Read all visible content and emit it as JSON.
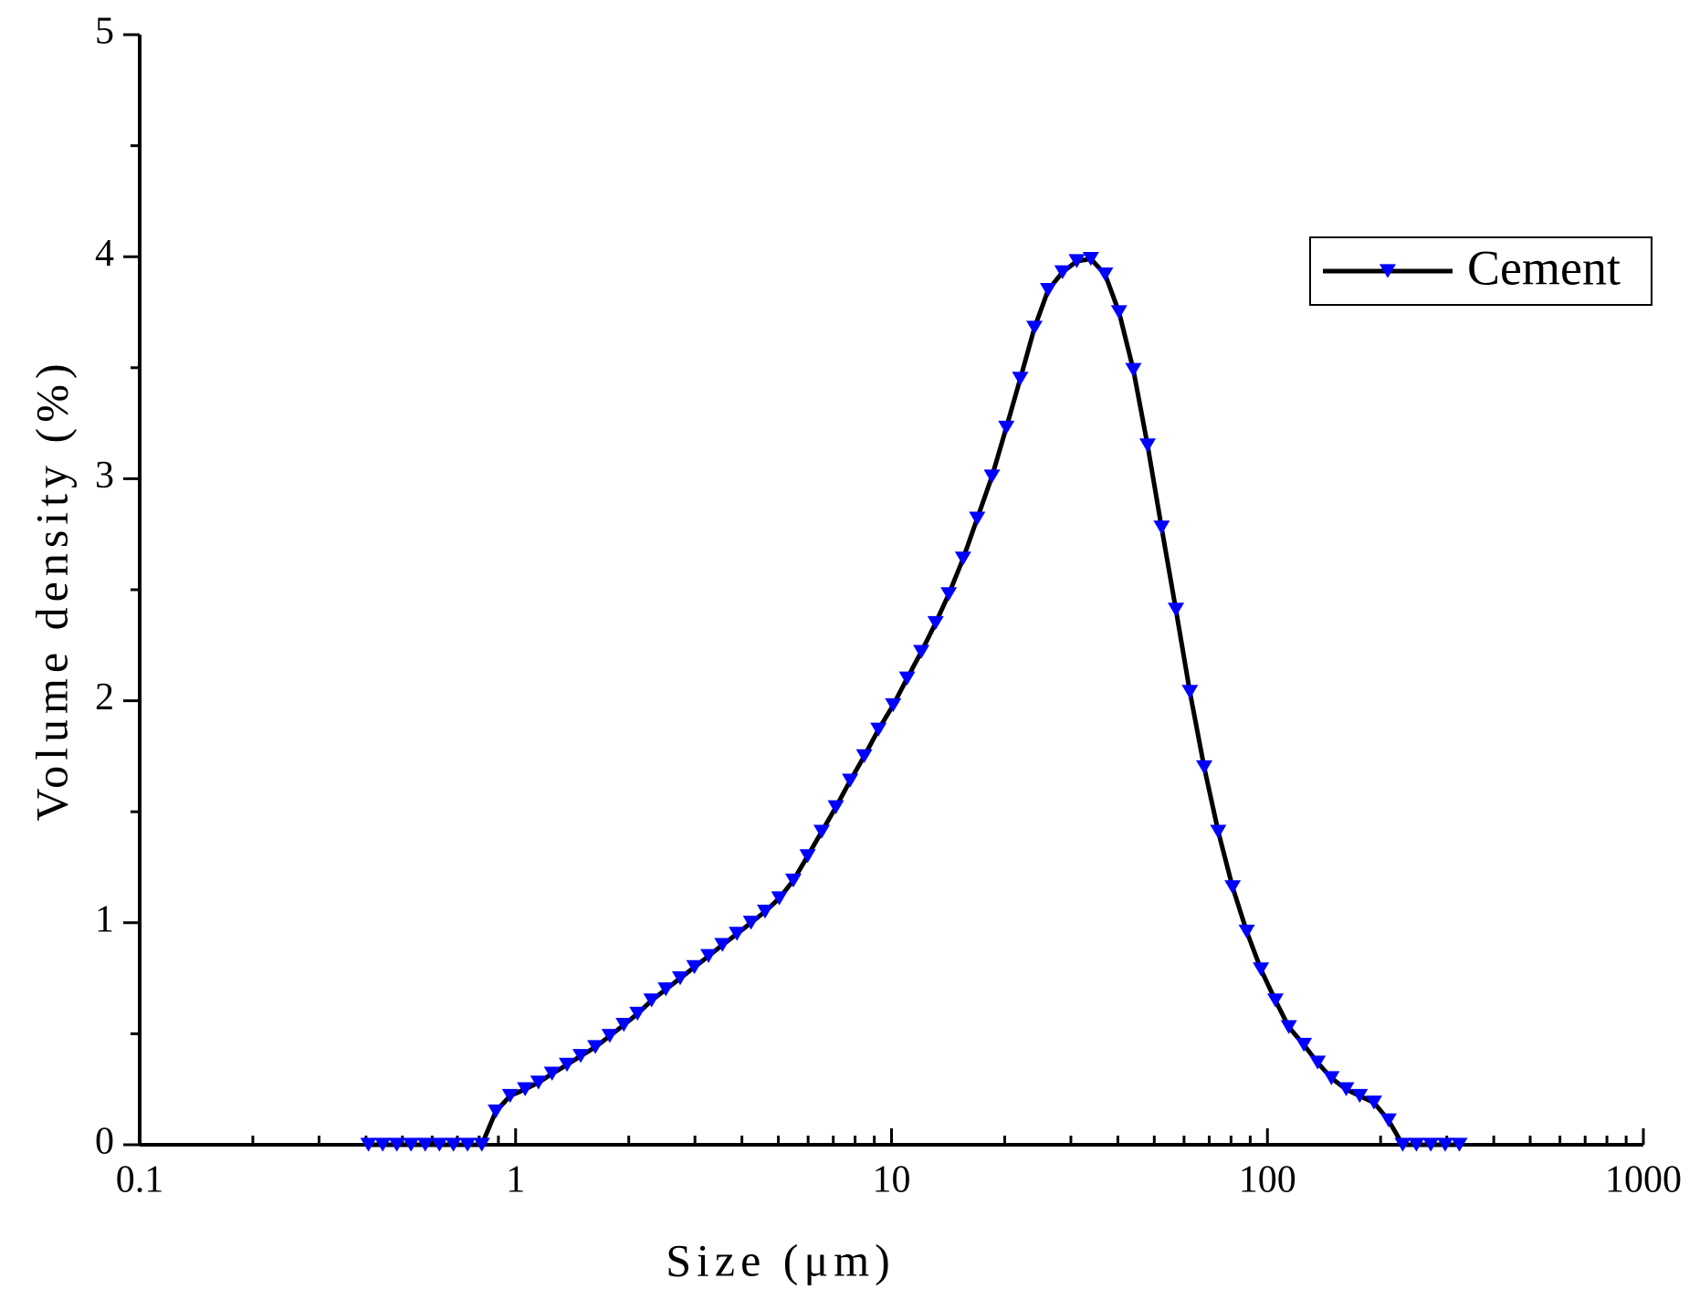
{
  "chart_data": {
    "type": "line",
    "xlabel": "Size (μm)",
    "ylabel": "Volume density (%)",
    "xscale": "log",
    "xlim": [
      0.1,
      1000
    ],
    "ylim": [
      0,
      5
    ],
    "xticks": [
      0.1,
      1,
      10,
      100,
      1000
    ],
    "xminorticks": [
      0.2,
      0.3,
      0.4,
      0.5,
      0.6,
      0.7,
      0.8,
      0.9,
      2,
      3,
      4,
      5,
      6,
      7,
      8,
      9,
      20,
      30,
      40,
      50,
      60,
      70,
      80,
      90,
      200,
      300,
      400,
      500,
      600,
      700,
      800,
      900
    ],
    "yticks": [
      0,
      1,
      2,
      3,
      4,
      5
    ],
    "yminorticks": [
      0.5,
      1.5,
      2.5,
      3.5,
      4.5
    ],
    "legend_position": "upper right",
    "series": [
      {
        "name": "Cement",
        "color": "#0000ff",
        "line_color": "#000000",
        "marker": "triangle-down",
        "x": [
          0.406,
          0.443,
          0.483,
          0.527,
          0.575,
          0.627,
          0.683,
          0.745,
          0.813,
          0.886,
          0.967,
          1.06,
          1.15,
          1.25,
          1.37,
          1.49,
          1.63,
          1.78,
          1.94,
          2.11,
          2.3,
          2.51,
          2.74,
          2.99,
          3.26,
          3.55,
          3.88,
          4.23,
          4.61,
          5.03,
          5.48,
          5.98,
          6.52,
          7.11,
          7.76,
          8.46,
          9.23,
          10.1,
          11,
          12,
          13.1,
          14.2,
          15.5,
          16.9,
          18.5,
          20.2,
          22,
          24,
          26.1,
          28.5,
          31.1,
          33.9,
          37,
          40.3,
          44,
          48,
          52.3,
          57.1,
          62.2,
          67.9,
          74,
          80.8,
          88.1,
          96.1,
          105,
          114,
          125,
          136,
          148,
          162,
          176,
          192,
          210,
          229,
          249,
          272,
          297,
          324
        ],
        "values": [
          0,
          0,
          0,
          0,
          0,
          0,
          0,
          0,
          0,
          0.15,
          0.22,
          0.25,
          0.28,
          0.32,
          0.36,
          0.4,
          0.44,
          0.49,
          0.54,
          0.59,
          0.65,
          0.7,
          0.75,
          0.8,
          0.85,
          0.9,
          0.95,
          1,
          1.05,
          1.11,
          1.19,
          1.3,
          1.41,
          1.52,
          1.64,
          1.75,
          1.87,
          1.98,
          2.1,
          2.22,
          2.35,
          2.48,
          2.64,
          2.82,
          3.01,
          3.23,
          3.45,
          3.68,
          3.85,
          3.93,
          3.98,
          3.99,
          3.92,
          3.75,
          3.49,
          3.15,
          2.78,
          2.41,
          2.04,
          1.7,
          1.41,
          1.16,
          0.96,
          0.79,
          0.65,
          0.53,
          0.45,
          0.37,
          0.3,
          0.25,
          0.22,
          0.19,
          0.11,
          0,
          0,
          0,
          0,
          0
        ]
      }
    ]
  }
}
